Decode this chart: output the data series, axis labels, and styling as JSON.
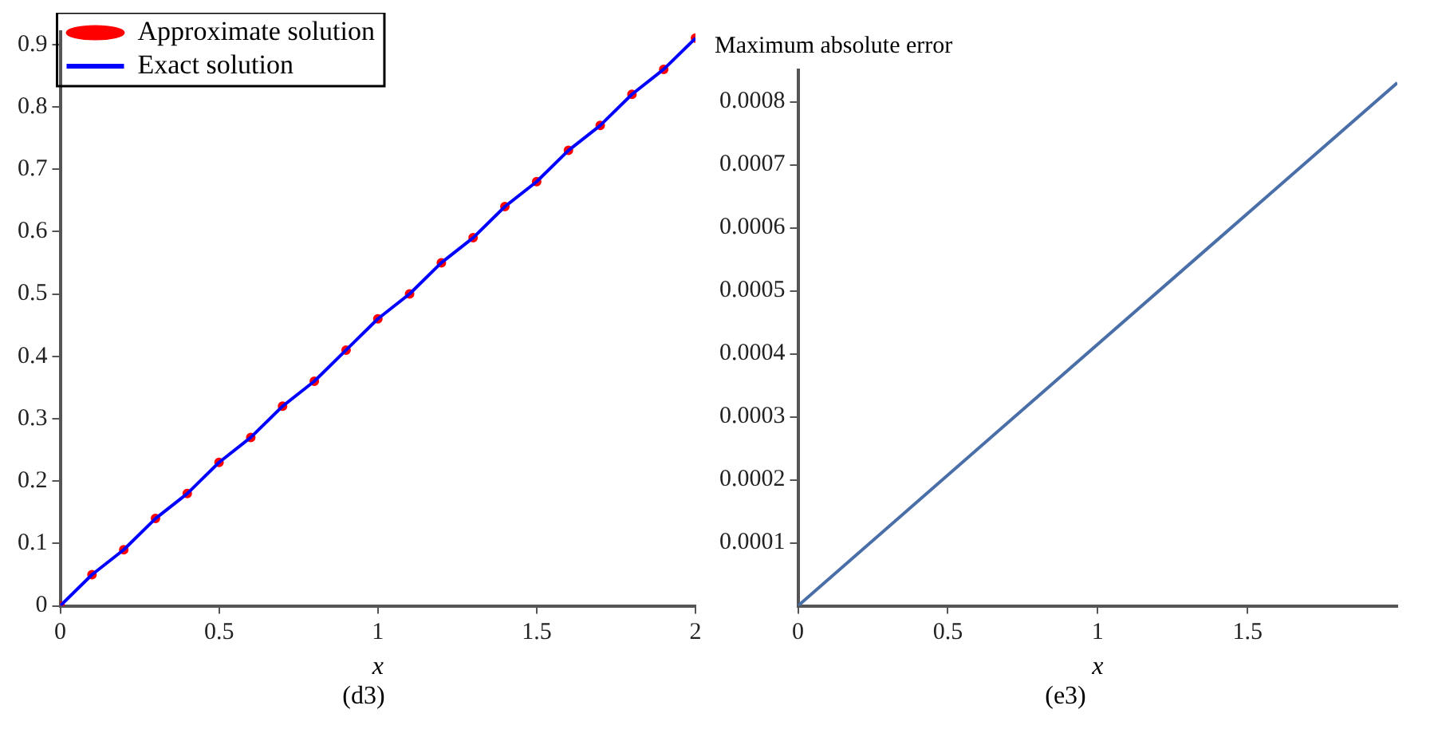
{
  "chart_data": [
    {
      "type": "line",
      "xlabel": "x",
      "annotations": [
        "(d3)"
      ],
      "legend": "top left",
      "grid": false,
      "xlim": [
        0,
        2
      ],
      "xticks": [
        0,
        0.5,
        1,
        1.5,
        2
      ],
      "ylim": [
        0,
        0.92
      ],
      "yticks": [
        0,
        0.1,
        0.2,
        0.3,
        0.4,
        0.5,
        0.6,
        0.7,
        0.8,
        0.9
      ],
      "x": [
        0,
        0.1,
        0.2,
        0.3,
        0.4,
        0.5,
        0.6,
        0.7,
        0.8,
        0.9,
        1,
        1.1,
        1.2,
        1.3,
        1.4,
        1.5,
        1.6,
        1.7,
        1.8,
        1.9,
        2
      ],
      "series": [
        {
          "name": "Approximate solution",
          "type": "scatter",
          "marker": "circle",
          "color": "#ff0000",
          "values": [
            0,
            0.05,
            0.09,
            0.14,
            0.18,
            0.23,
            0.27,
            0.32,
            0.36,
            0.41,
            0.46,
            0.5,
            0.55,
            0.59,
            0.64,
            0.68,
            0.73,
            0.77,
            0.82,
            0.86,
            0.91
          ]
        },
        {
          "name": "Exact solution",
          "type": "line",
          "color": "#0000ff",
          "values": [
            0,
            0.05,
            0.09,
            0.14,
            0.18,
            0.23,
            0.27,
            0.32,
            0.36,
            0.41,
            0.46,
            0.5,
            0.55,
            0.59,
            0.64,
            0.68,
            0.73,
            0.77,
            0.82,
            0.86,
            0.91
          ]
        }
      ]
    },
    {
      "type": "line",
      "title": "Maximum absolute error",
      "xlabel": "x",
      "annotations": [
        "(e3)"
      ],
      "grid": false,
      "xlim": [
        0,
        2
      ],
      "xticks": [
        0,
        0.5,
        1,
        1.5
      ],
      "ylim": [
        0,
        0.00085
      ],
      "x": [
        0,
        2
      ],
      "yticks": [
        0.0001,
        0.0002,
        0.0003,
        0.0004,
        0.0005,
        0.0006,
        0.0007,
        0.0008
      ],
      "series": [
        {
          "type": "line",
          "color": "#4a6fa8",
          "values": [
            0,
            0.00083
          ]
        }
      ]
    }
  ]
}
